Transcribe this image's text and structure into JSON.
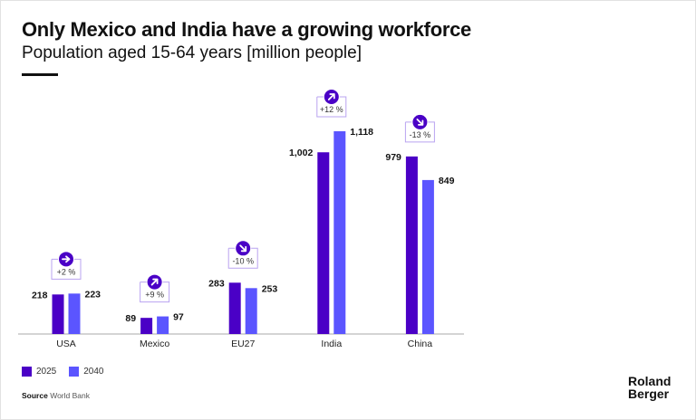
{
  "chart_data": {
    "type": "bar",
    "title": "Only Mexico and India have a growing workforce",
    "subtitle": "Population aged 15-64 years [million people]",
    "categories": [
      "USA",
      "Mexico",
      "EU27",
      "India",
      "China"
    ],
    "series": [
      {
        "name": "2025",
        "color": "#4A00C6",
        "values": [
          218,
          89,
          283,
          1002,
          979
        ],
        "labels": [
          "218",
          "89",
          "283",
          "1,002",
          "979"
        ]
      },
      {
        "name": "2040",
        "color": "#5B55FF",
        "values": [
          223,
          97,
          253,
          1118,
          849
        ],
        "labels": [
          "223",
          "97",
          "253",
          "1,118",
          "849"
        ]
      }
    ],
    "changes": [
      {
        "label": "+2 %",
        "icon": "arrow-right-icon"
      },
      {
        "label": "+9 %",
        "icon": "arrow-up-right-icon"
      },
      {
        "label": "-10 %",
        "icon": "arrow-down-right-icon"
      },
      {
        "label": "+12 %",
        "icon": "arrow-up-right-icon"
      },
      {
        "label": "-13 %",
        "icon": "arrow-down-right-icon"
      }
    ],
    "ylim": [
      0,
      1118
    ],
    "xlabel": "",
    "ylabel": "",
    "legend": "bottom-left",
    "grid": false
  },
  "source_label": "Source",
  "source_text": "World Bank",
  "logo": {
    "line1": "Roland",
    "line2": "Berger"
  }
}
